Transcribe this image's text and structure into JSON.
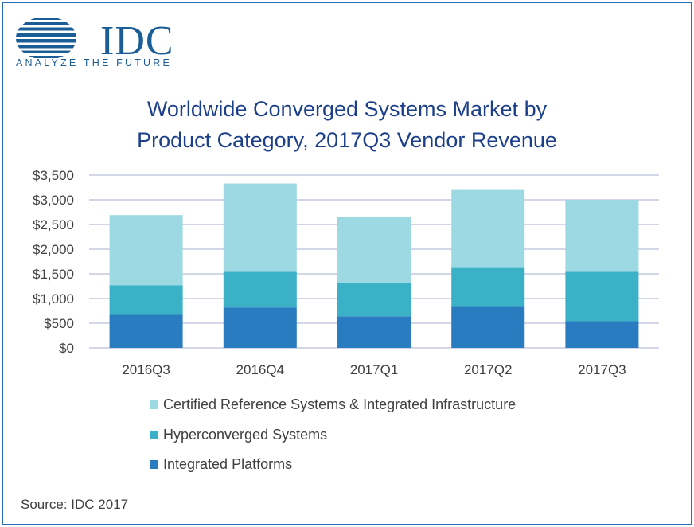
{
  "brand": {
    "logo_text": "IDC",
    "tagline": "ANALYZE THE FUTURE"
  },
  "title_line1": "Worldwide Converged Systems Market by",
  "title_line2": "Product Category, 2017Q3 Vendor Revenue",
  "source": "Source: IDC 2017",
  "colors": {
    "certified": "#9dd9e3",
    "hyperconverged": "#3bb1c8",
    "integrated": "#2a7cc0",
    "title": "#1b3f8a",
    "frame": "#2a6fb5"
  },
  "chart_data": {
    "type": "bar",
    "stacked": true,
    "categories": [
      "2016Q3",
      "2016Q4",
      "2017Q1",
      "2017Q2",
      "2017Q3"
    ],
    "series": [
      {
        "name": "Integrated Platforms",
        "values": [
          670,
          820,
          640,
          830,
          540
        ]
      },
      {
        "name": "Hyperconverged Systems",
        "values": [
          600,
          720,
          680,
          790,
          1000
        ]
      },
      {
        "name": "Certified Reference Systems & Integrated Infrastructure",
        "values": [
          1420,
          1790,
          1340,
          1580,
          1460
        ]
      }
    ],
    "yticks": [
      "$0",
      "$500",
      "$1,000",
      "$1,500",
      "$2,000",
      "$2,500",
      "$3,000",
      "$3,500"
    ],
    "ylim": [
      0,
      3500
    ],
    "grid": true,
    "legend": "bottom"
  }
}
